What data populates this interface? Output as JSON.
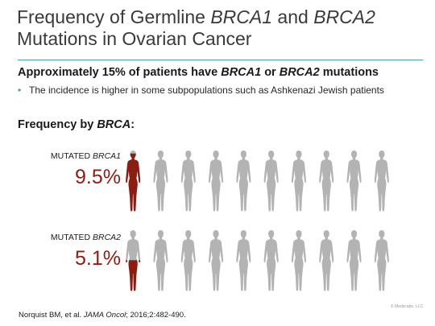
{
  "slide": {
    "title_pre": "Frequency of Germline ",
    "title_gene1": "BRCA1",
    "title_and": " and ",
    "title_gene2": "BRCA2",
    "title_line2": "Mutations in Ovarian Cancer",
    "subhead_pre": "Approximately 15% of patients have ",
    "subhead_gene1": "BRCA1",
    "subhead_or": " or ",
    "subhead_gene2": "BRCA2",
    "subhead_post": " mutations",
    "bullet": "The incidence is higher in some subpopulations such as Ashkenazi Jewish patients",
    "freq_pre": "Frequency by ",
    "freq_gene": "BRCA",
    "freq_post": ":"
  },
  "rows": [
    {
      "label_pre": "MUTATED ",
      "label_gene": "BRCA1",
      "percent_text": "9.5%",
      "fraction_filled": 0.95,
      "figure_count": 10
    },
    {
      "label_pre": "MUTATED ",
      "label_gene": "BRCA2",
      "percent_text": "5.1%",
      "fraction_filled": 0.51,
      "figure_count": 10
    }
  ],
  "colors": {
    "filled": "#8b1e12",
    "empty": "#b3b3b3",
    "accent": "#4a9aa8"
  },
  "citation": {
    "authors": "Norquist BM, et al. ",
    "journal": "JAMA Oncol",
    "details": "; 2016;2:482-490."
  },
  "watermark": "© Medscape, LLC"
}
